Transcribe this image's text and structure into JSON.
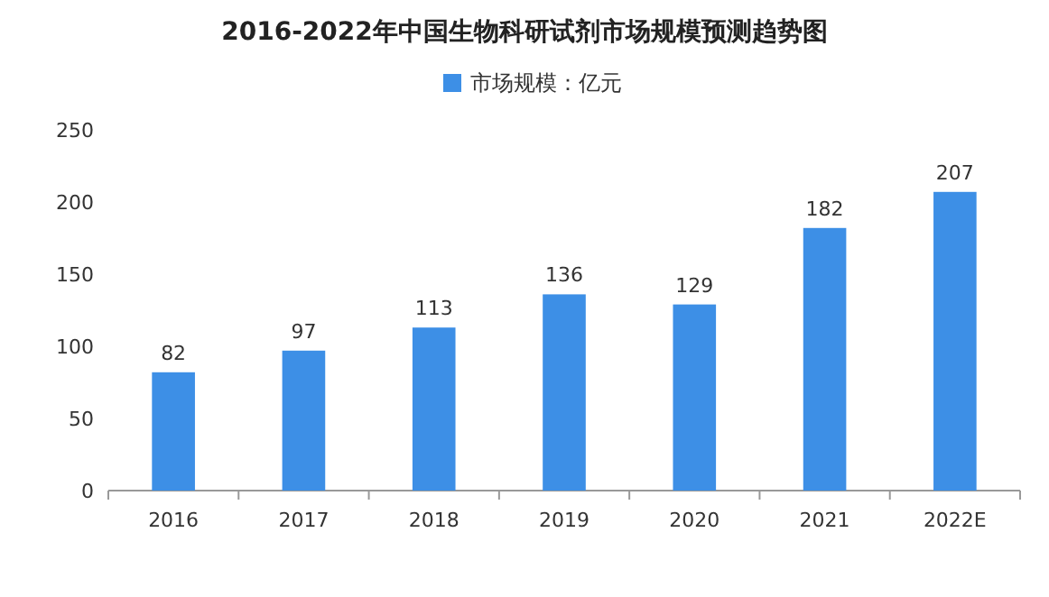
{
  "chart_data": {
    "type": "bar",
    "title": "2016-2022年中国生物科研试剂市场规模预测趋势图",
    "categories": [
      "2016",
      "2017",
      "2018",
      "2019",
      "2020",
      "2021",
      "2022E"
    ],
    "series": [
      {
        "name": "市场规模：亿元",
        "color": "#3d8fe6",
        "values": [
          82,
          97,
          113,
          136,
          129,
          182,
          207
        ]
      }
    ],
    "ylim": [
      0,
      250
    ],
    "yticks": [
      0,
      50,
      100,
      150,
      200,
      250
    ],
    "data_labels": true,
    "legend": "top",
    "grid": false
  }
}
